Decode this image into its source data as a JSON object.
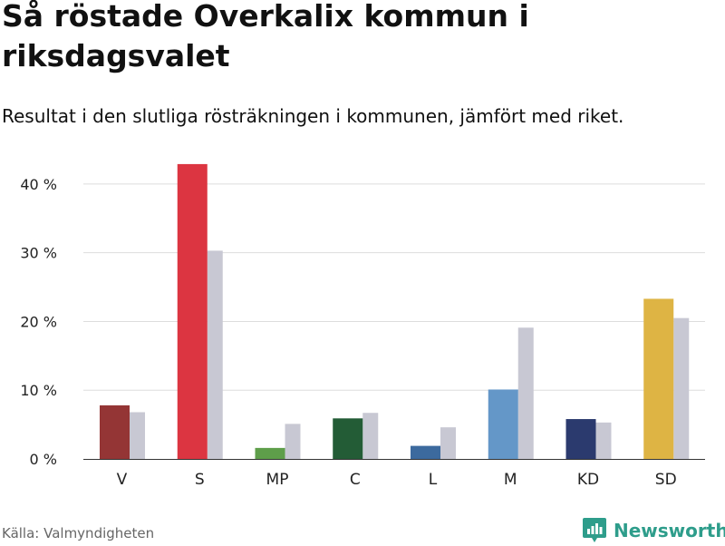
{
  "title": "Så röstade Overkalix kommun i riksdagsvalet",
  "subtitle": "Resultat i den slutliga rösträkningen i kommunen, jämfört med riket.",
  "source": "Källa: Valmyndigheten",
  "brand": {
    "name": "Newsworthy",
    "icon": "bar-chart-logo-icon",
    "color": "#2e9d8b"
  },
  "chart_data": {
    "type": "bar",
    "title": "Så röstade Overkalix kommun i riksdagsvalet",
    "subtitle": "Resultat i den slutliga rösträkningen i kommunen, jämfört med riket.",
    "xlabel": "",
    "ylabel": "",
    "ylim": [
      0,
      45
    ],
    "yticks": [
      0,
      10,
      20,
      30,
      40
    ],
    "ytick_labels": [
      "0 %",
      "10 %",
      "20 %",
      "30 %",
      "40 %"
    ],
    "grid": true,
    "categories": [
      "V",
      "S",
      "MP",
      "C",
      "L",
      "M",
      "KD",
      "SD"
    ],
    "series": [
      {
        "name": "Overkalix",
        "values": [
          7.8,
          42.9,
          1.6,
          5.9,
          1.9,
          10.1,
          5.8,
          23.3
        ],
        "colors": [
          "#943535",
          "#dc3541",
          "#5e9e4a",
          "#235c36",
          "#3c6a9e",
          "#6497c8",
          "#2b3a6e",
          "#deb444"
        ]
      },
      {
        "name": "Riket",
        "values": [
          6.8,
          30.3,
          5.1,
          6.7,
          4.6,
          19.1,
          5.3,
          20.5
        ],
        "color": "#c8c8d3"
      }
    ]
  }
}
